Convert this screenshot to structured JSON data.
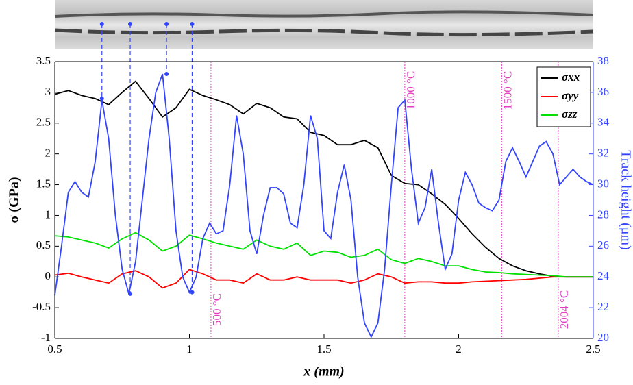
{
  "chart_data": {
    "type": "line",
    "xlabel": "x (mm)",
    "ylabel": "σ (GPa)",
    "y2label": "Track height (μm)",
    "xlim": [
      0.5,
      2.5
    ],
    "xticks": [
      0.5,
      1,
      1.5,
      2,
      2.5
    ],
    "ylim": [
      -1,
      3.5
    ],
    "yticks": [
      -1,
      -0.5,
      0,
      0.5,
      1,
      1.5,
      2,
      2.5,
      3,
      3.5
    ],
    "y2lim": [
      20,
      38
    ],
    "y2ticks": [
      20,
      22,
      24,
      26,
      28,
      30,
      32,
      34,
      36,
      38
    ],
    "legend": "upper right",
    "x": [
      0.5,
      0.55,
      0.6,
      0.65,
      0.7,
      0.75,
      0.8,
      0.85,
      0.9,
      0.95,
      1.0,
      1.05,
      1.1,
      1.15,
      1.2,
      1.25,
      1.3,
      1.35,
      1.4,
      1.45,
      1.5,
      1.55,
      1.6,
      1.65,
      1.7,
      1.75,
      1.8,
      1.85,
      1.9,
      1.95,
      2.0,
      2.05,
      2.1,
      2.15,
      2.2,
      2.25,
      2.3,
      2.35,
      2.4,
      2.45,
      2.5
    ],
    "series": [
      {
        "name": "σxx",
        "color": "#000000",
        "values": [
          2.97,
          3.03,
          2.95,
          2.9,
          2.8,
          3.0,
          3.18,
          2.9,
          2.6,
          2.75,
          3.05,
          2.95,
          2.88,
          2.8,
          2.65,
          2.82,
          2.75,
          2.6,
          2.57,
          2.35,
          2.3,
          2.15,
          2.15,
          2.22,
          2.1,
          1.65,
          1.52,
          1.5,
          1.35,
          1.18,
          0.95,
          0.7,
          0.48,
          0.3,
          0.18,
          0.1,
          0.05,
          0.01,
          0,
          0,
          0
        ]
      },
      {
        "name": "σyy",
        "color": "#ff0000",
        "values": [
          0.03,
          0.06,
          0,
          -0.05,
          -0.1,
          0.05,
          0.1,
          0,
          -0.18,
          -0.1,
          0.12,
          0.05,
          -0.05,
          -0.05,
          -0.1,
          0.05,
          -0.05,
          -0.05,
          0,
          -0.05,
          -0.05,
          -0.05,
          -0.1,
          -0.05,
          0.05,
          0,
          -0.1,
          -0.08,
          -0.08,
          -0.1,
          -0.1,
          -0.08,
          -0.07,
          -0.06,
          -0.05,
          -0.04,
          -0.02,
          0,
          0,
          0,
          0
        ]
      },
      {
        "name": "σzz",
        "color": "#00e000",
        "values": [
          0.67,
          0.65,
          0.6,
          0.55,
          0.47,
          0.62,
          0.72,
          0.6,
          0.42,
          0.5,
          0.68,
          0.62,
          0.55,
          0.5,
          0.45,
          0.6,
          0.5,
          0.45,
          0.55,
          0.35,
          0.42,
          0.4,
          0.32,
          0.35,
          0.45,
          0.28,
          0.22,
          0.3,
          0.25,
          0.18,
          0.18,
          0.12,
          0.08,
          0.07,
          0.05,
          0.04,
          0.03,
          0.02,
          0,
          0,
          0
        ]
      },
      {
        "color": "#3344ff",
        "axis": "y2",
        "x": [
          0.5,
          0.525,
          0.55,
          0.575,
          0.6,
          0.625,
          0.65,
          0.675,
          0.7,
          0.725,
          0.75,
          0.775,
          0.8,
          0.825,
          0.85,
          0.875,
          0.9,
          0.925,
          0.95,
          0.975,
          1.0,
          1.025,
          1.05,
          1.075,
          1.1,
          1.125,
          1.15,
          1.175,
          1.2,
          1.225,
          1.25,
          1.275,
          1.3,
          1.325,
          1.35,
          1.375,
          1.4,
          1.425,
          1.45,
          1.475,
          1.5,
          1.525,
          1.55,
          1.575,
          1.6,
          1.625,
          1.65,
          1.675,
          1.7,
          1.725,
          1.75,
          1.775,
          1.8,
          1.825,
          1.85,
          1.875,
          1.9,
          1.925,
          1.95,
          1.975,
          2.0,
          2.025,
          2.05,
          2.075,
          2.1,
          2.125,
          2.15,
          2.175,
          2.2,
          2.225,
          2.25,
          2.275,
          2.3,
          2.325,
          2.35,
          2.375,
          2.4,
          2.425,
          2.45,
          2.475,
          2.5
        ],
        "values": [
          22.8,
          26,
          29.5,
          30.2,
          29.5,
          29.2,
          31.5,
          35.5,
          33,
          28,
          24.5,
          22.9,
          25,
          29,
          33,
          36,
          37.2,
          33,
          27,
          24,
          23,
          24,
          26.5,
          27.5,
          26.8,
          27,
          30,
          34.5,
          32,
          27,
          25.5,
          28,
          29.8,
          29.8,
          29.4,
          27.5,
          27.2,
          30,
          34.5,
          33,
          27,
          26.5,
          29.5,
          31.3,
          29,
          24,
          21,
          20.1,
          21,
          24.5,
          30,
          35,
          35.5,
          31,
          27.5,
          28.5,
          31,
          27.5,
          24.5,
          25.5,
          29,
          30.8,
          30,
          28.8,
          28.5,
          28.3,
          29,
          31.5,
          32.4,
          31.5,
          30.5,
          31.5,
          32.5,
          32.8,
          32,
          30,
          30.5,
          31,
          30.5,
          30.2,
          30
        ]
      }
    ],
    "markers": {
      "color": "#3344ff",
      "x": [
        0.675,
        0.78,
        0.915,
        1.01
      ],
      "values": [
        35.6,
        22.9,
        37.2,
        23.0
      ]
    },
    "annotations": [
      {
        "x": 1.08,
        "label": "500 °C",
        "pos": "bottom"
      },
      {
        "x": 1.8,
        "label": "1000 °C",
        "pos": "top"
      },
      {
        "x": 2.16,
        "label": "1500 °C",
        "pos": "top"
      },
      {
        "x": 2.37,
        "label": "2004 °C",
        "pos": "bottom"
      }
    ]
  }
}
